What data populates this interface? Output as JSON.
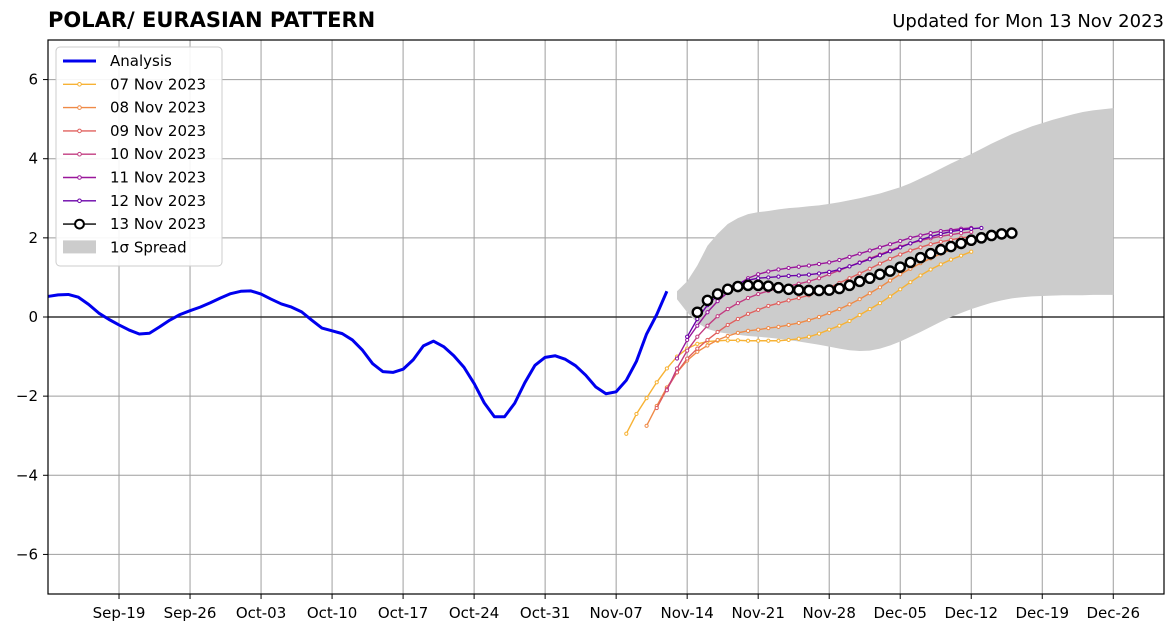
{
  "chart_data": {
    "type": "line",
    "title": "POLAR/ EURASIAN  PATTERN",
    "subtitle": "Updated for Mon 13 Nov 2023",
    "xlabel": "",
    "ylabel": "",
    "x_range": [
      "2023-09-12",
      "2023-12-31"
    ],
    "ylim": [
      -7,
      7
    ],
    "y_ticks": [
      -6,
      -4,
      -2,
      0,
      2,
      4,
      6
    ],
    "y_tick_labels": [
      "−6",
      "−4",
      "−2",
      "0",
      "2",
      "4",
      "6"
    ],
    "x_ticks": [
      "2023-09-19",
      "2023-09-26",
      "2023-10-03",
      "2023-10-10",
      "2023-10-17",
      "2023-10-24",
      "2023-10-31",
      "2023-11-07",
      "2023-11-14",
      "2023-11-21",
      "2023-11-28",
      "2023-12-05",
      "2023-12-12",
      "2023-12-19",
      "2023-12-26"
    ],
    "x_tick_labels": [
      "Sep-19",
      "Sep-26",
      "Oct-03",
      "Oct-10",
      "Oct-17",
      "Oct-24",
      "Oct-31",
      "Nov-07",
      "Nov-14",
      "Nov-21",
      "Nov-28",
      "Dec-05",
      "Dec-12",
      "Dec-19",
      "Dec-26"
    ],
    "grid": true,
    "legend_position": "top-left",
    "analysis": {
      "name": "Analysis",
      "color": "#0000ee",
      "start": "2023-09-12",
      "values": [
        0.52,
        0.56,
        0.57,
        0.5,
        0.32,
        0.1,
        -0.06,
        -0.2,
        -0.33,
        -0.43,
        -0.41,
        -0.25,
        -0.08,
        0.06,
        0.16,
        0.25,
        0.36,
        0.48,
        0.59,
        0.65,
        0.66,
        0.58,
        0.45,
        0.33,
        0.25,
        0.13,
        -0.08,
        -0.28,
        -0.35,
        -0.42,
        -0.58,
        -0.84,
        -1.18,
        -1.38,
        -1.4,
        -1.32,
        -1.08,
        -0.73,
        -0.61,
        -0.75,
        -0.98,
        -1.27,
        -1.68,
        -2.17,
        -2.52,
        -2.52,
        -2.18,
        -1.66,
        -1.22,
        -1.02,
        -0.98,
        -1.07,
        -1.23,
        -1.47,
        -1.77,
        -1.94,
        -1.89,
        -1.6,
        -1.12,
        -0.43,
        0.06,
        0.65
      ]
    },
    "spread": {
      "name": "1σ Spread",
      "color": "#cccccc",
      "start": "2023-11-13",
      "upper": [
        0.65,
        0.9,
        1.3,
        1.8,
        2.1,
        2.35,
        2.5,
        2.6,
        2.65,
        2.68,
        2.72,
        2.75,
        2.77,
        2.8,
        2.82,
        2.86,
        2.9,
        2.95,
        3.0,
        3.06,
        3.12,
        3.2,
        3.28,
        3.38,
        3.5,
        3.62,
        3.75,
        3.88,
        4.0,
        4.12,
        4.25,
        4.38,
        4.5,
        4.62,
        4.72,
        4.82,
        4.9,
        4.98,
        5.05,
        5.12,
        5.18,
        5.22,
        5.25,
        5.28
      ],
      "lower": [
        0.45,
        0.12,
        -0.15,
        -0.3,
        -0.38,
        -0.42,
        -0.45,
        -0.48,
        -0.5,
        -0.52,
        -0.55,
        -0.58,
        -0.62,
        -0.66,
        -0.7,
        -0.75,
        -0.8,
        -0.84,
        -0.86,
        -0.85,
        -0.8,
        -0.72,
        -0.62,
        -0.5,
        -0.38,
        -0.25,
        -0.12,
        0.0,
        0.1,
        0.2,
        0.28,
        0.36,
        0.42,
        0.47,
        0.5,
        0.52,
        0.53,
        0.54,
        0.55,
        0.55,
        0.55,
        0.56,
        0.56,
        0.56
      ]
    },
    "series": [
      {
        "name": "07 Nov 2023",
        "color": "#f7b234",
        "start": "2023-11-08",
        "values": [
          -2.95,
          -2.45,
          -2.05,
          -1.65,
          -1.3,
          -1.0,
          -0.8,
          -0.68,
          -0.62,
          -0.6,
          -0.59,
          -0.59,
          -0.6,
          -0.6,
          -0.6,
          -0.6,
          -0.58,
          -0.55,
          -0.5,
          -0.42,
          -0.32,
          -0.22,
          -0.1,
          0.05,
          0.2,
          0.35,
          0.52,
          0.7,
          0.88,
          1.05,
          1.2,
          1.33,
          1.45,
          1.55,
          1.65
        ]
      },
      {
        "name": "08 Nov 2023",
        "color": "#ef8a47",
        "start": "2023-11-10",
        "values": [
          -2.75,
          -2.25,
          -1.78,
          -1.4,
          -1.1,
          -0.88,
          -0.72,
          -0.58,
          -0.48,
          -0.4,
          -0.35,
          -0.32,
          -0.28,
          -0.25,
          -0.2,
          -0.15,
          -0.08,
          0.0,
          0.1,
          0.2,
          0.32,
          0.45,
          0.6,
          0.75,
          0.92,
          1.08,
          1.22,
          1.36,
          1.48,
          1.6,
          1.7,
          1.8,
          1.88
        ]
      },
      {
        "name": "09 Nov 2023",
        "color": "#e0605e",
        "start": "2023-11-11",
        "values": [
          -2.3,
          -1.82,
          -1.4,
          -1.05,
          -0.8,
          -0.58,
          -0.38,
          -0.2,
          -0.05,
          0.08,
          0.18,
          0.28,
          0.35,
          0.42,
          0.48,
          0.55,
          0.64,
          0.74,
          0.86,
          0.98,
          1.1,
          1.22,
          1.35,
          1.47,
          1.58,
          1.68,
          1.76,
          1.84,
          1.9,
          1.95,
          2.0,
          2.03
        ]
      },
      {
        "name": "10 Nov 2023",
        "color": "#c23c81",
        "start": "2023-11-12",
        "values": [
          -1.85,
          -1.3,
          -0.85,
          -0.5,
          -0.22,
          0.02,
          0.2,
          0.35,
          0.48,
          0.58,
          0.66,
          0.72,
          0.78,
          0.84,
          0.9,
          0.98,
          1.08,
          1.18,
          1.28,
          1.38,
          1.48,
          1.58,
          1.68,
          1.78,
          1.86,
          1.93,
          1.99,
          2.04,
          2.08,
          2.12,
          2.15
        ]
      },
      {
        "name": "11 Nov 2023",
        "color": "#9a179b",
        "start": "2023-11-13",
        "values": [
          -1.05,
          -0.58,
          -0.22,
          0.12,
          0.4,
          0.62,
          0.82,
          0.98,
          1.08,
          1.15,
          1.2,
          1.24,
          1.27,
          1.3,
          1.34,
          1.38,
          1.44,
          1.52,
          1.6,
          1.68,
          1.76,
          1.84,
          1.92,
          2.0,
          2.06,
          2.12,
          2.17,
          2.2,
          2.23,
          2.25
        ]
      },
      {
        "name": "12 Nov 2023",
        "color": "#6a00a8",
        "start": "2023-11-14",
        "values": [
          -0.5,
          -0.05,
          0.3,
          0.55,
          0.72,
          0.85,
          0.93,
          0.98,
          1.0,
          1.02,
          1.04,
          1.05,
          1.07,
          1.1,
          1.14,
          1.2,
          1.28,
          1.37,
          1.46,
          1.56,
          1.66,
          1.76,
          1.86,
          1.95,
          2.03,
          2.1,
          2.16,
          2.2,
          2.23,
          2.25
        ]
      },
      {
        "name": "13 Nov 2023",
        "color": "#000000",
        "start": "2023-11-15",
        "values": [
          0.12,
          0.42,
          0.58,
          0.7,
          0.77,
          0.8,
          0.8,
          0.78,
          0.74,
          0.7,
          0.68,
          0.67,
          0.67,
          0.68,
          0.72,
          0.8,
          0.9,
          0.98,
          1.08,
          1.16,
          1.26,
          1.38,
          1.5,
          1.6,
          1.7,
          1.78,
          1.86,
          1.94,
          2.0,
          2.06,
          2.1,
          2.12
        ]
      }
    ]
  }
}
